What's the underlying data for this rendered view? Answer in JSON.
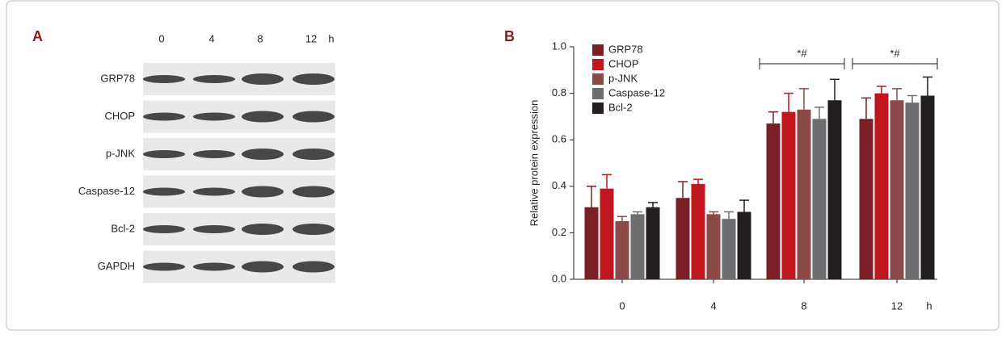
{
  "blot": {
    "panel_label": "A",
    "lanes": [
      "0",
      "4",
      "8",
      "12"
    ],
    "unit": "h",
    "rows": [
      "GRP78",
      "CHOP",
      "p-JNK",
      "Caspase-12",
      "Bcl-2",
      "GAPDH"
    ]
  },
  "chart_data": {
    "type": "bar",
    "panel_label": "B",
    "y_label": "Relative protein expression",
    "x_unit": "h",
    "categories": [
      "0",
      "4",
      "8",
      "12"
    ],
    "ylim": [
      0,
      1
    ],
    "yticks": [
      {
        "value": 0,
        "label": "0.0"
      },
      0.2,
      0.4,
      0.6,
      0.8,
      {
        "value": 1,
        "label": "1.0"
      }
    ],
    "significance": [
      null,
      null,
      "*#",
      "*#"
    ],
    "series": [
      {
        "name": "GRP78",
        "color": "#7a1f24",
        "values": [
          0.31,
          0.35,
          0.67,
          0.69
        ],
        "errors": [
          0.09,
          0.07,
          0.05,
          0.09
        ]
      },
      {
        "name": "CHOP",
        "color": "#c0161f",
        "values": [
          0.39,
          0.41,
          0.72,
          0.8
        ],
        "errors": [
          0.06,
          0.02,
          0.08,
          0.03
        ]
      },
      {
        "name": "p-JNK",
        "color": "#8b4a4a",
        "values": [
          0.25,
          0.28,
          0.73,
          0.77
        ],
        "errors": [
          0.02,
          0.01,
          0.09,
          0.05
        ]
      },
      {
        "name": "Caspase-12",
        "color": "#6d6e70",
        "values": [
          0.28,
          0.26,
          0.69,
          0.76
        ],
        "errors": [
          0.01,
          0.03,
          0.05,
          0.03
        ]
      },
      {
        "name": "Bcl-2",
        "color": "#231f20",
        "values": [
          0.31,
          0.29,
          0.77,
          0.79
        ],
        "errors": [
          0.02,
          0.05,
          0.09,
          0.08
        ]
      }
    ]
  }
}
